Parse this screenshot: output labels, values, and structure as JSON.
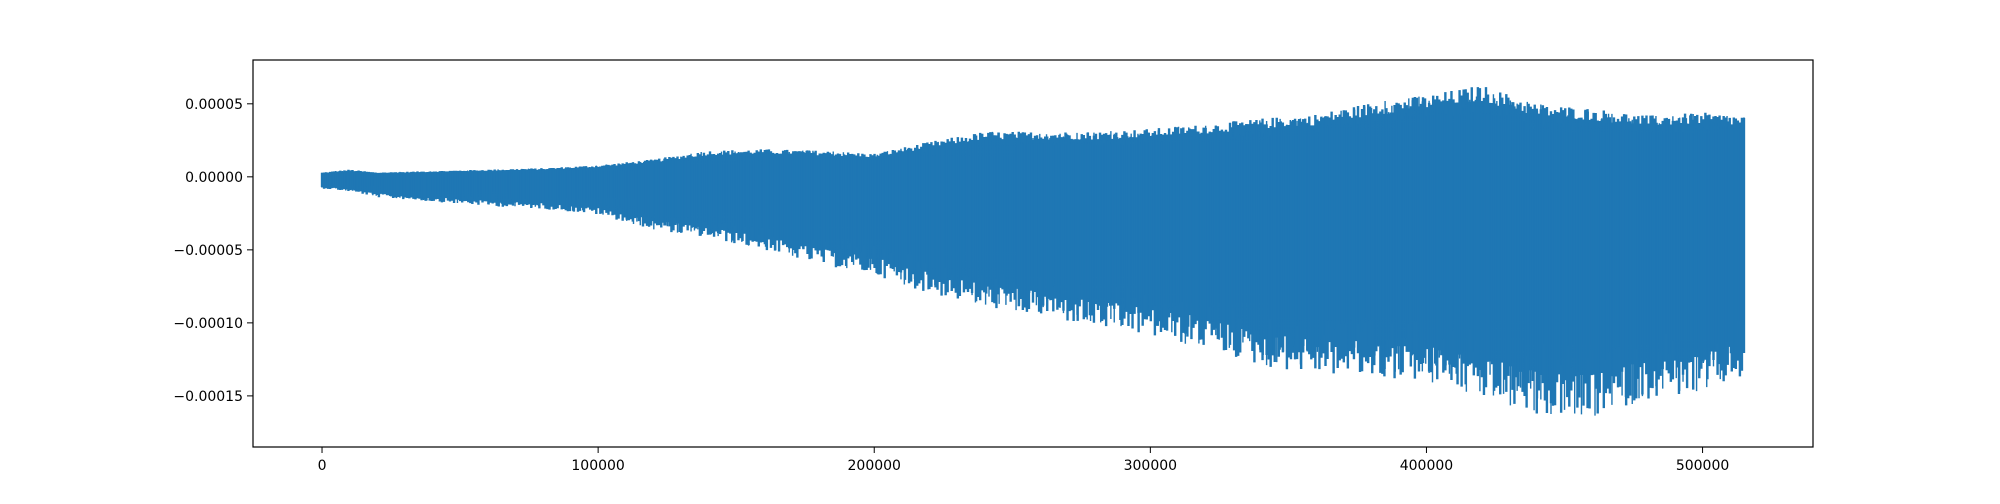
{
  "chart_data": {
    "type": "line",
    "title": "",
    "xlabel": "",
    "ylabel": "",
    "xlim": [
      -25000,
      540000
    ],
    "ylim": [
      -0.000185,
      8e-05
    ],
    "xticks": [
      0,
      100000,
      200000,
      300000,
      400000,
      500000
    ],
    "xtick_labels": [
      "0",
      "100000",
      "200000",
      "300000",
      "400000",
      "500000"
    ],
    "yticks": [
      5e-05,
      0.0,
      -5e-05,
      -0.0001,
      -0.00015
    ],
    "ytick_labels": [
      "0.00005",
      "0.00000",
      "−0.00005",
      "−0.00010",
      "−0.00015"
    ],
    "grid": false,
    "legend": "none",
    "series": [
      {
        "color": "#1f77b4",
        "x_range": [
          0,
          515000
        ],
        "envelope": {
          "x": [
            0,
            10000,
            20000,
            40000,
            60000,
            80000,
            100000,
            120000,
            140000,
            160000,
            180000,
            200000,
            220000,
            240000,
            260000,
            280000,
            300000,
            320000,
            340000,
            360000,
            380000,
            400000,
            420000,
            440000,
            460000,
            480000,
            500000,
            515000
          ],
          "upper": [
            3e-06,
            5e-06,
            3e-06,
            4e-06,
            5e-06,
            6e-06,
            8e-06,
            1.2e-05,
            1.8e-05,
            1.9e-05,
            1.8e-05,
            1.6e-05,
            2.4e-05,
            3.1e-05,
            3.1e-05,
            3.1e-05,
            3.3e-05,
            3.6e-05,
            4e-05,
            4.3e-05,
            5.1e-05,
            5.6e-05,
            6.3e-05,
            5e-05,
            4.7e-05,
            4.2e-05,
            4.4e-05,
            4.2e-05
          ],
          "lower": [
            -8e-06,
            -1e-05,
            -1.4e-05,
            -1.7e-05,
            -2e-05,
            -2.2e-05,
            -2.6e-05,
            -3.6e-05,
            -4.2e-05,
            -5e-05,
            -6e-05,
            -6.7e-05,
            -8e-05,
            -8.9e-05,
            -9.6e-05,
            -0.000103,
            -0.00011,
            -0.000117,
            -0.00013,
            -0.000135,
            -0.000138,
            -0.00014,
            -0.00015,
            -0.000163,
            -0.000165,
            -0.000152,
            -0.000148,
            -0.000138
          ]
        }
      }
    ]
  }
}
